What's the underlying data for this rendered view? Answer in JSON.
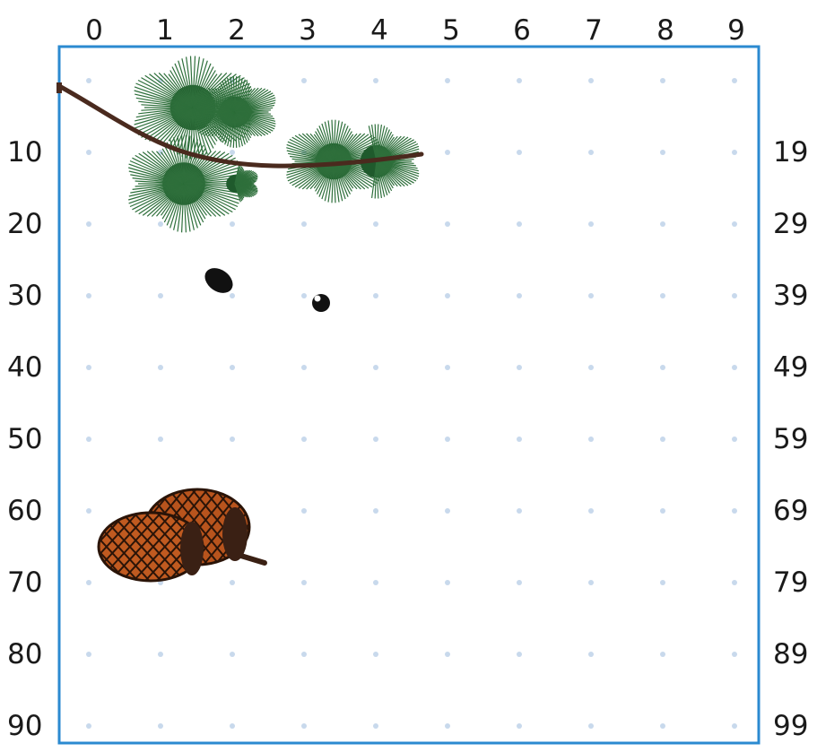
{
  "grid": {
    "column_labels": [
      "0",
      "1",
      "2",
      "3",
      "4",
      "5",
      "6",
      "7",
      "8",
      "9"
    ],
    "left_row_labels": [
      "10",
      "20",
      "30",
      "40",
      "50",
      "60",
      "70",
      "80",
      "90"
    ],
    "right_row_labels": [
      "19",
      "29",
      "39",
      "49",
      "59",
      "69",
      "79",
      "89",
      "99"
    ],
    "border_color": "#2b8ad0",
    "dot_color": "#c8d9ec"
  },
  "illustrations": [
    {
      "name": "pine-branch",
      "description_icon": "pine-branch-icon"
    },
    {
      "name": "seed-large",
      "description_icon": "seed-icon"
    },
    {
      "name": "seed-small",
      "description_icon": "seed-icon"
    },
    {
      "name": "pine-cones",
      "description_icon": "pine-cone-icon"
    }
  ]
}
